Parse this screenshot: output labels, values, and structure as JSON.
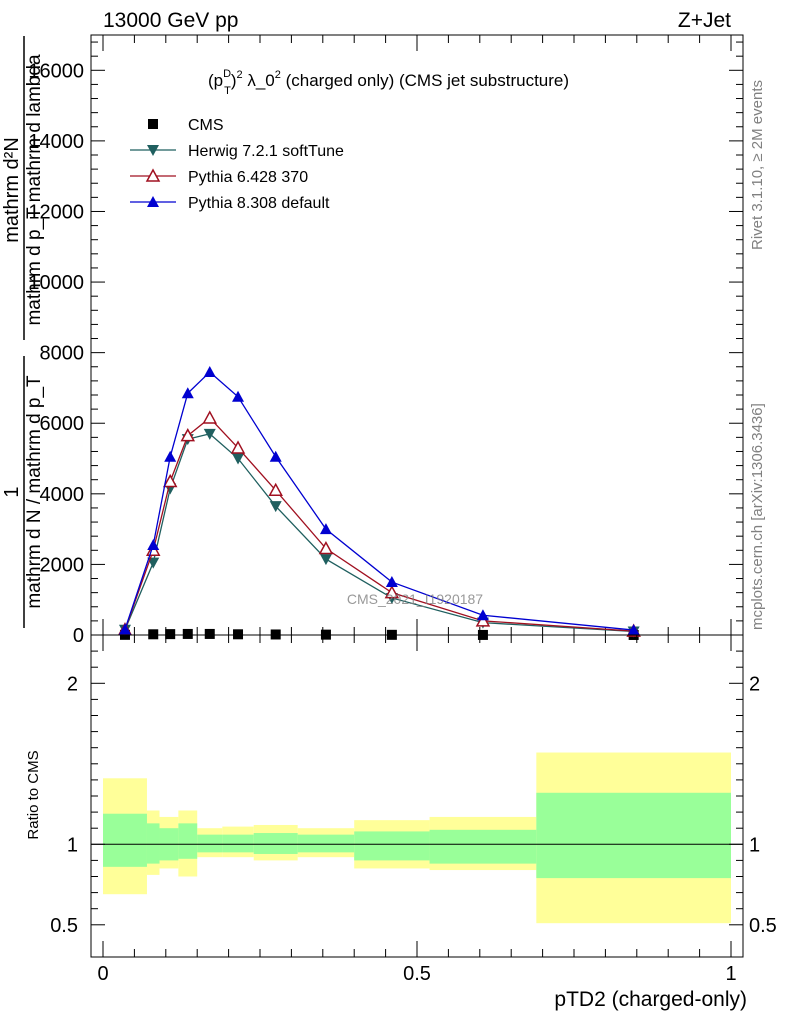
{
  "header": {
    "left": "13000 GeV pp",
    "right": "Z+Jet"
  },
  "side_labels": {
    "rivet": "Rivet 3.1.10, ≥ 2M events",
    "mcplots": "mcplots.cern.ch [arXiv:1306.3436]"
  },
  "watermark": "CMS_2021_I1920187",
  "colors": {
    "cms": "#000000",
    "herwig": "#1f5f5f",
    "pythia6": "#a01020",
    "pythia8": "#0000d0",
    "band_outer": "#ffff99",
    "band_inner": "#99ff99"
  },
  "chart_data": [
    {
      "type": "line",
      "title": "(p_T^D)^2 λ_0^2 (charged only) (CMS jet substructure)",
      "title_parts": {
        "p": "(p",
        "sup_d": "D",
        "sub_t": "T",
        "close": ")",
        "sup_2": "2",
        "mid": " λ_0",
        "sup_2b": "2",
        "rest": " (charged only) (CMS jet substructure)"
      },
      "ylabel_top": "mathrm d²N",
      "ylabel_top_sub": "mathrm d p_T mathrm d lambda",
      "ylabel_frac_num": "1",
      "ylabel_frac_den": "mathrm d N / mathrm d p_T",
      "ylim": [
        0,
        17000
      ],
      "yticks": [
        0,
        2000,
        4000,
        6000,
        8000,
        10000,
        12000,
        14000,
        16000
      ],
      "ytick_labels": [
        "0",
        "2000",
        "4000",
        "6000",
        "8000",
        "10000",
        "12000",
        "14000",
        "16000"
      ],
      "xlim": [
        0,
        1
      ],
      "legend_position": "top-left",
      "series": [
        {
          "name": "CMS",
          "marker": "square",
          "x": [
            0.035,
            0.08,
            0.107,
            0.135,
            0.17,
            0.215,
            0.275,
            0.355,
            0.46,
            0.605,
            0.845
          ],
          "y": [
            5,
            20,
            25,
            30,
            30,
            20,
            15,
            10,
            5,
            2,
            1
          ]
        },
        {
          "name": "Herwig 7.2.1 softTune",
          "marker": "triangle-down",
          "x": [
            0.035,
            0.08,
            0.107,
            0.135,
            0.17,
            0.215,
            0.275,
            0.355,
            0.46,
            0.605,
            0.845
          ],
          "y": [
            150,
            2050,
            4150,
            5550,
            5700,
            5000,
            3650,
            2150,
            1050,
            350,
            100
          ]
        },
        {
          "name": "Pythia 6.428 370",
          "marker": "triangle-open",
          "x": [
            0.035,
            0.08,
            0.107,
            0.135,
            0.17,
            0.215,
            0.275,
            0.355,
            0.46,
            0.605,
            0.845
          ],
          "y": [
            150,
            2400,
            4350,
            5650,
            6150,
            5300,
            4100,
            2450,
            1200,
            400,
            110
          ]
        },
        {
          "name": "Pythia 8.308 default",
          "marker": "triangle-up",
          "x": [
            0.035,
            0.08,
            0.107,
            0.135,
            0.17,
            0.215,
            0.275,
            0.355,
            0.46,
            0.605,
            0.845
          ],
          "y": [
            160,
            2550,
            5050,
            6850,
            7450,
            6750,
            5050,
            3000,
            1500,
            560,
            140
          ]
        }
      ]
    },
    {
      "type": "area",
      "ylabel": "Ratio to CMS",
      "xlabel": "pTD2 (charged-only)",
      "ylim": [
        0.3,
        2.3
      ],
      "yticks": [
        0.5,
        1,
        2
      ],
      "ytick_labels": [
        "0.5",
        "1",
        "2"
      ],
      "xlim": [
        0,
        1
      ],
      "xticks": [
        0,
        0.5,
        1
      ],
      "xtick_labels": [
        "0",
        "0.5",
        "1"
      ],
      "reference_line": 1,
      "bins": [
        {
          "lo": 0.0,
          "hi": 0.07,
          "inner": [
            0.86,
            1.19
          ],
          "outer": [
            0.69,
            1.41
          ]
        },
        {
          "lo": 0.07,
          "hi": 0.09,
          "inner": [
            0.88,
            1.13
          ],
          "outer": [
            0.81,
            1.21
          ]
        },
        {
          "lo": 0.09,
          "hi": 0.12,
          "inner": [
            0.9,
            1.1
          ],
          "outer": [
            0.85,
            1.17
          ]
        },
        {
          "lo": 0.12,
          "hi": 0.15,
          "inner": [
            0.91,
            1.13
          ],
          "outer": [
            0.8,
            1.21
          ]
        },
        {
          "lo": 0.15,
          "hi": 0.19,
          "inner": [
            0.95,
            1.06
          ],
          "outer": [
            0.92,
            1.1
          ]
        },
        {
          "lo": 0.19,
          "hi": 0.24,
          "inner": [
            0.95,
            1.06
          ],
          "outer": [
            0.92,
            1.11
          ]
        },
        {
          "lo": 0.24,
          "hi": 0.31,
          "inner": [
            0.94,
            1.07
          ],
          "outer": [
            0.9,
            1.12
          ]
        },
        {
          "lo": 0.31,
          "hi": 0.4,
          "inner": [
            0.95,
            1.06
          ],
          "outer": [
            0.92,
            1.1
          ]
        },
        {
          "lo": 0.4,
          "hi": 0.52,
          "inner": [
            0.9,
            1.08
          ],
          "outer": [
            0.85,
            1.15
          ]
        },
        {
          "lo": 0.52,
          "hi": 0.69,
          "inner": [
            0.88,
            1.09
          ],
          "outer": [
            0.84,
            1.17
          ]
        },
        {
          "lo": 0.69,
          "hi": 1.0,
          "inner": [
            0.79,
            1.32
          ],
          "outer": [
            0.51,
            1.57
          ]
        }
      ]
    }
  ]
}
